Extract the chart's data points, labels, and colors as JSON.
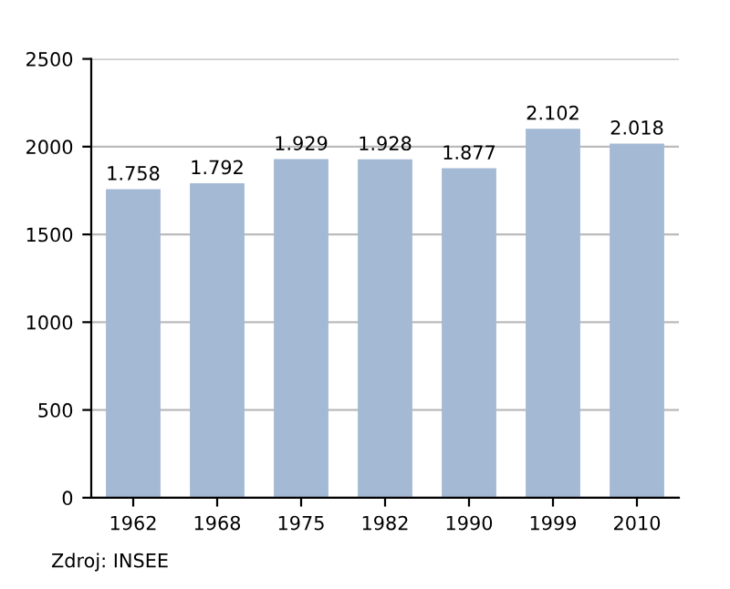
{
  "chart_data": {
    "type": "bar",
    "categories": [
      "1962",
      "1968",
      "1975",
      "1982",
      "1990",
      "1999",
      "2010"
    ],
    "values": [
      1758,
      1792,
      1929,
      1928,
      1877,
      2102,
      2018
    ],
    "value_labels": [
      "1.758",
      "1.792",
      "1.929",
      "1.928",
      "1.877",
      "2.102",
      "2.018"
    ],
    "color": "#a3b9d4",
    "ylim": [
      0,
      2500
    ],
    "yticks": [
      0,
      500,
      1000,
      1500,
      2000,
      2500
    ],
    "grid": "y",
    "annotations": [
      "Zdroj: INSEE"
    ]
  }
}
